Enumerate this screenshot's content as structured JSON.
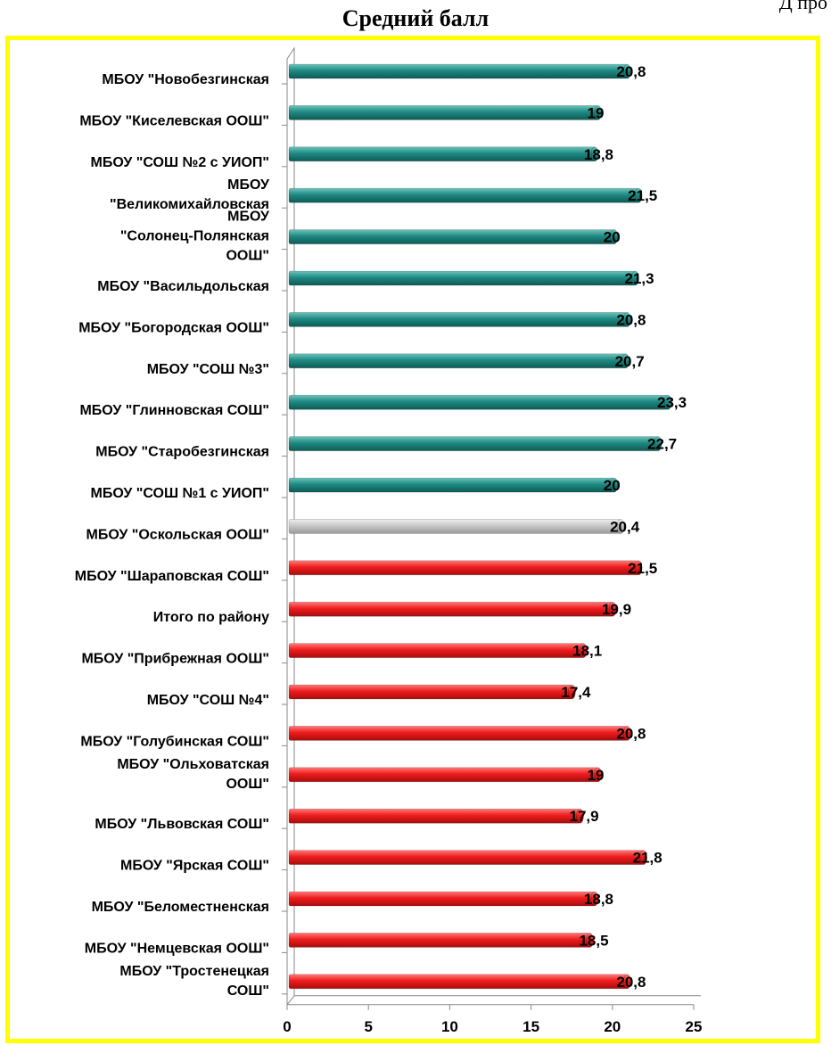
{
  "page": {
    "corner_text": "Д  про"
  },
  "chart_data": {
    "type": "bar",
    "orientation": "horizontal",
    "title": "Средний балл",
    "xlabel": "",
    "ylabel": "",
    "xlim": [
      0,
      25
    ],
    "xticks": [
      "0",
      "5",
      "10",
      "15",
      "20",
      "25"
    ],
    "grid": false,
    "legend": "none",
    "colors": {
      "teal": "#1e8a82",
      "gray": "#c8c8c8",
      "red": "#ee1c1c"
    },
    "categories": [
      "МБОУ \"Новобезгинская",
      "МБОУ \"Киселевская ООШ\"",
      "МБОУ \"СОШ №2 с УИОП\"",
      "МБОУ \"Великомихайловская",
      "МБОУ \"Солонец-Полянская ООШ\"",
      "МБОУ \"Васильдольская",
      "МБОУ \"Богородская ООШ\"",
      "МБОУ \"СОШ №3\"",
      "МБОУ \"Глинновская СОШ\"",
      "МБОУ \"Старобезгинская",
      "МБОУ \"СОШ №1 с УИОП\"",
      "МБОУ \"Оскольская ООШ\"",
      "МБОУ \"Шараповская СОШ\"",
      "Итого по району",
      "МБОУ \"Прибрежная ООШ\"",
      "МБОУ \"СОШ №4\"",
      "МБОУ \"Голубинская СОШ\"",
      "МБОУ \"Ольховатская ООШ\"",
      "МБОУ \"Львовская СОШ\"",
      "МБОУ \"Ярская СОШ\"",
      "МБОУ \"Беломестненская",
      "МБОУ \"Немцевская ООШ\"",
      "МБОУ \"Тростенецкая СОШ\""
    ],
    "values": [
      20.8,
      19,
      18.8,
      21.5,
      20,
      21.3,
      20.8,
      20.7,
      23.3,
      22.7,
      20,
      20.4,
      21.5,
      19.9,
      18.1,
      17.4,
      20.8,
      19,
      17.9,
      21.8,
      18.8,
      18.5,
      20.8
    ],
    "data_labels": [
      "20,8",
      "19",
      "18,8",
      "21,5",
      "20",
      "21,3",
      "20,8",
      "20,7",
      "23,3",
      "22,7",
      "20",
      "20,4",
      "21,5",
      "19,9",
      "18,1",
      "17,4",
      "20,8",
      "19",
      "17,9",
      "21,8",
      "18,8",
      "18,5",
      "20,8"
    ],
    "bar_colors": [
      "teal",
      "teal",
      "teal",
      "teal",
      "teal",
      "teal",
      "teal",
      "teal",
      "teal",
      "teal",
      "teal",
      "gray",
      "red",
      "red",
      "red",
      "red",
      "red",
      "red",
      "red",
      "red",
      "red",
      "red",
      "red"
    ]
  }
}
